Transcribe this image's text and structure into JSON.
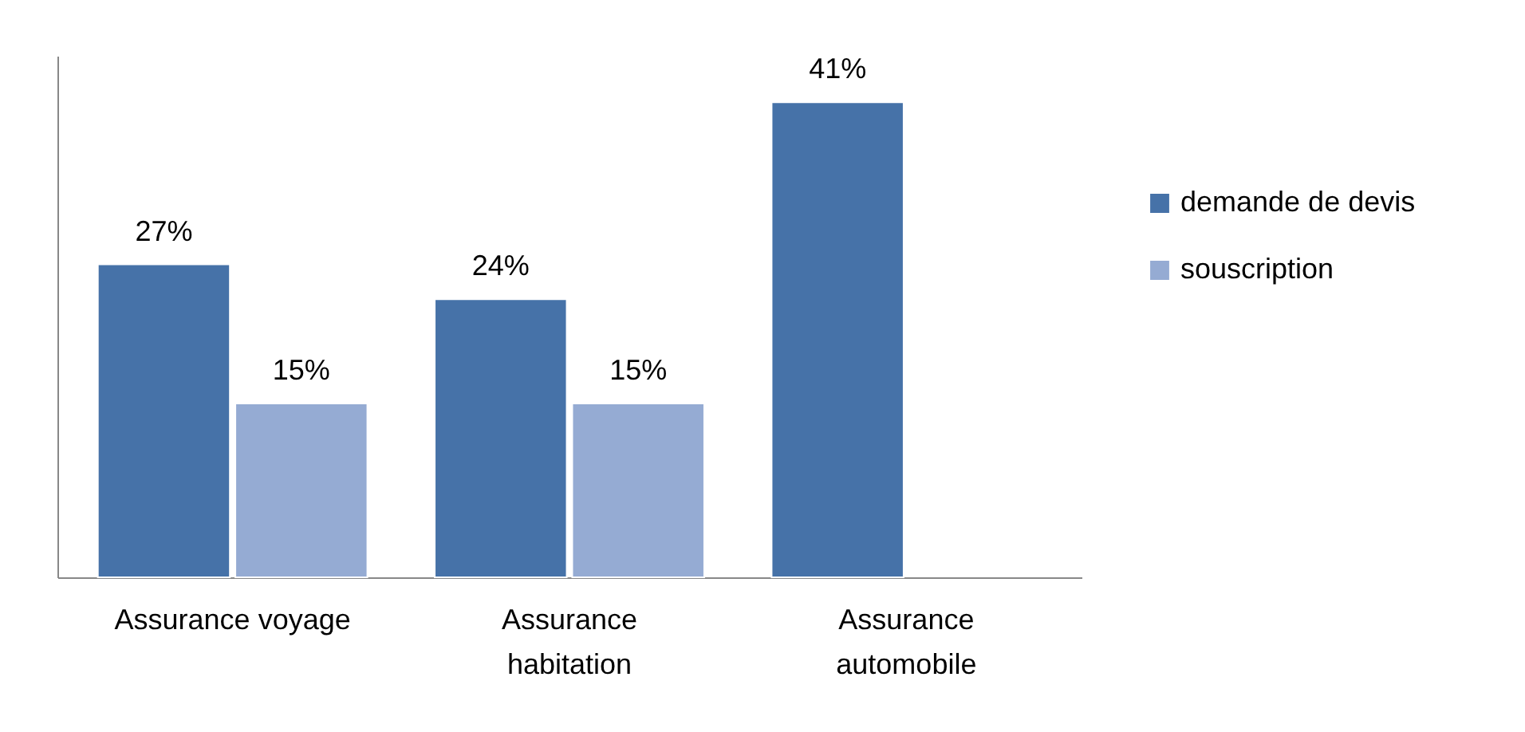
{
  "chart_data": {
    "type": "bar",
    "categories": [
      "Assurance voyage",
      "Assurance habitation",
      "Assurance automobile"
    ],
    "series": [
      {
        "name": "demande de devis",
        "color": "#4672a8",
        "values": [
          27,
          24,
          41
        ],
        "value_labels": [
          "27%",
          "24%",
          "41%"
        ]
      },
      {
        "name": "souscription",
        "color": "#95abd3",
        "values": [
          15,
          15,
          null
        ],
        "value_labels": [
          "15%",
          "15%",
          null
        ]
      }
    ],
    "legend": "right",
    "tick_labels": "x"
  }
}
